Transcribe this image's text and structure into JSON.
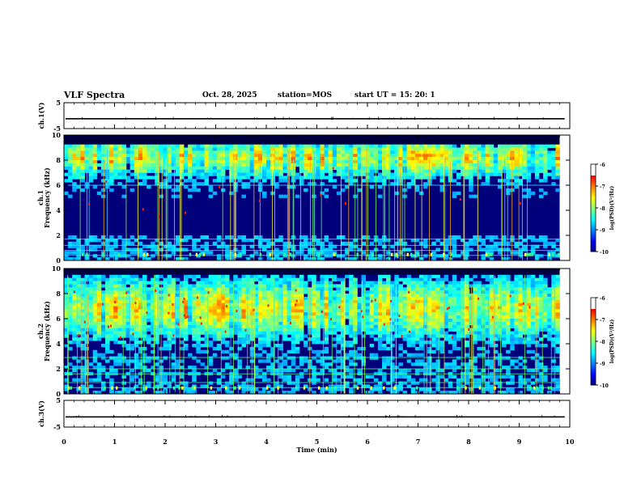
{
  "header": {
    "title": "VLF Spectra",
    "date": "Oct. 28, 2025",
    "station": "station=MOS",
    "start": "start  UT =   15: 20: 1"
  },
  "chart_data": [
    {
      "type": "line",
      "name": "ch1-voltage",
      "ylabel": "ch.1(V)",
      "ylim": [
        -5,
        5
      ],
      "yticks": [
        5,
        -5
      ],
      "xlim": [
        0,
        10
      ],
      "level": -1.2
    },
    {
      "type": "heatmap",
      "name": "ch1-spectrogram",
      "ylabel_line1": "ch.1",
      "ylabel_line2": "Frequency (kHz)",
      "ylim": [
        0,
        10
      ],
      "yticks": [
        0,
        2,
        4,
        6,
        8,
        10
      ],
      "xlim": [
        0,
        10
      ],
      "data_end_minutes": 9.8,
      "emission_band_khz": [
        2.0,
        9.2
      ],
      "colorbar": {
        "label": "log(PSD)(V²/Hz)",
        "range": [
          -10,
          -6
        ],
        "ticks": [
          "-6",
          "-7",
          "-8",
          "-9",
          "-10"
        ]
      }
    },
    {
      "type": "heatmap",
      "name": "ch2-spectrogram",
      "ylabel_line1": "ch.2",
      "ylabel_line2": "Frequency (kHz)",
      "ylim": [
        0,
        10
      ],
      "yticks": [
        0,
        2,
        4,
        6,
        8,
        10
      ],
      "xlim": [
        0,
        10
      ],
      "data_end_minutes": 9.8,
      "emission_band_khz": [
        3.0,
        9.5
      ],
      "colorbar": {
        "label": "log(PSD)(V²/Hz)",
        "range": [
          -10,
          -6
        ],
        "ticks": [
          "-6",
          "-7",
          "-8",
          "-9",
          "-10"
        ]
      }
    },
    {
      "type": "line",
      "name": "ch3-voltage",
      "ylabel": "ch.3(V)",
      "ylim": [
        -5,
        5
      ],
      "yticks": [
        5,
        -5
      ],
      "xlim": [
        0,
        10
      ],
      "level": -1.2
    }
  ],
  "xaxis": {
    "label": "Time  (min)",
    "ticks": [
      "0",
      "1",
      "2",
      "3",
      "4",
      "5",
      "6",
      "7",
      "8",
      "9",
      "10"
    ]
  }
}
